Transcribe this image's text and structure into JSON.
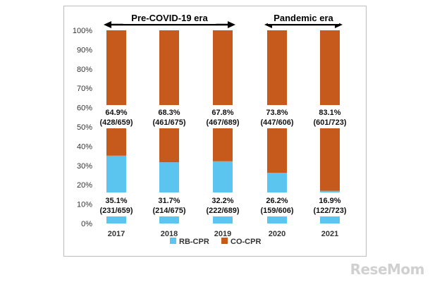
{
  "chart_data": {
    "type": "bar",
    "stacked": true,
    "categories": [
      "2017",
      "2018",
      "2019",
      "2020",
      "2021"
    ],
    "series": [
      {
        "name": "RB-CPR",
        "color": "#5bc4ef",
        "values": [
          35.1,
          31.7,
          32.2,
          26.2,
          16.9
        ],
        "labels": [
          "35.1%",
          "31.7%",
          "32.2%",
          "26.2%",
          "16.9%"
        ],
        "counts": [
          "(231/659)",
          "(214/675)",
          "(222/689)",
          "(159/606)",
          "(122/723)"
        ]
      },
      {
        "name": "CO-CPR",
        "color": "#c55a1c",
        "values": [
          64.9,
          68.3,
          67.8,
          73.8,
          83.1
        ],
        "labels": [
          "64.9%",
          "68.3%",
          "67.8%",
          "73.8%",
          "83.1%"
        ],
        "counts": [
          "(428/659)",
          "(461/675)",
          "(467/689)",
          "(447/606)",
          "(601/723)"
        ]
      }
    ],
    "ylim": [
      0,
      100
    ],
    "yticks": [
      "0%",
      "10%",
      "20%",
      "30%",
      "40%",
      "50%",
      "60%",
      "70%",
      "80%",
      "90%",
      "100%"
    ],
    "legend": "bottom",
    "annotations": [
      {
        "text": "Pre-COVID-19 era",
        "from": "2017",
        "to": "2019"
      },
      {
        "text": "Pandemic era",
        "from": "2020",
        "to": "2021"
      }
    ]
  },
  "watermark": "ReseMom"
}
